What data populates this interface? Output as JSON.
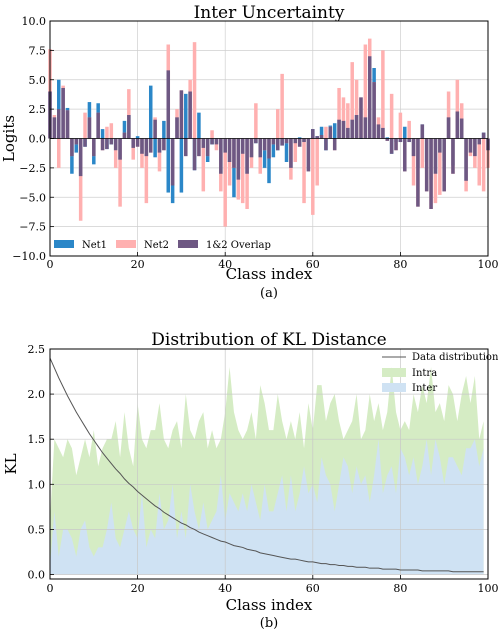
{
  "chart_data": [
    {
      "type": "bar",
      "title": "Inter Uncertainty",
      "xlabel": "Class index",
      "ylabel": "Logits",
      "caption": "(a)",
      "xlim": [
        0,
        100
      ],
      "ylim": [
        -10,
        10
      ],
      "xticks": [
        0,
        20,
        40,
        60,
        80,
        100
      ],
      "yticks": [
        -10.0,
        -7.5,
        -5.0,
        -2.5,
        0.0,
        2.5,
        5.0,
        7.5,
        10.0
      ],
      "ytick_labels": [
        "−10.0",
        "−7.5",
        "−5.0",
        "−2.5",
        "0.0",
        "2.5",
        "5.0",
        "7.5",
        "10.0"
      ],
      "grid": true,
      "legend": "bottom-left",
      "series": [
        {
          "name": "Net1",
          "color": "#2b87c8",
          "values": [
            4.0,
            1.8,
            5.0,
            4.3,
            2.6,
            -3.0,
            -1.2,
            -3.2,
            -0.7,
            3.1,
            -2.2,
            3.0,
            0.8,
            -0.9,
            -0.5,
            -1.0,
            -1.8,
            1.5,
            2.0,
            -0.8,
            0.2,
            -1.3,
            -1.5,
            4.5,
            -1.6,
            -1.2,
            1.5,
            -4.6,
            -5.5,
            1.8,
            -4.6,
            3.8,
            4.0,
            -2.7,
            2.2,
            -0.8,
            -2.0,
            -0.5,
            -0.5,
            -3.0,
            -1.2,
            -2.0,
            -5.0,
            -3.5,
            -1.3,
            -3.0,
            -1.6,
            -0.4,
            -1.6,
            -2.5,
            -3.8,
            -1.6,
            -1.0,
            -0.6,
            -2.0,
            -2.5,
            -0.4,
            0.1,
            -0.3,
            0.0,
            0.8,
            0.2,
            1.0,
            -1.0,
            1.1,
            1.3,
            1.6,
            1.5,
            0.9,
            1.6,
            2.0,
            0.0,
            1.8,
            2.0,
            6.0,
            1.2,
            0.9,
            0.1,
            -1.3,
            -0.3,
            -0.3,
            1.0,
            -0.3,
            -1.5,
            -2.5,
            1.2,
            -2.0,
            -3.5,
            -3.0,
            -1.2,
            -1.9,
            1.8,
            -2.3,
            2.3,
            1.7,
            -3.6,
            -1.2,
            -1.5,
            -0.5,
            0.5,
            -1.0
          ]
        },
        {
          "name": "Net2",
          "color": "#ffb0b0",
          "values": [
            7.6,
            2.0,
            -2.5,
            4.5,
            2.4,
            -1.5,
            -0.5,
            -7.0,
            2.2,
            1.8,
            -1.5,
            2.2,
            -1.0,
            1.0,
            1.3,
            -2.5,
            -5.8,
            0.5,
            4.2,
            -1.8,
            -0.7,
            -2.5,
            -5.5,
            -1.2,
            1.8,
            -2.8,
            -1.0,
            8.0,
            -4.0,
            2.5,
            4.1,
            -1.5,
            5.0,
            8.2,
            -1.5,
            -4.5,
            -1.5,
            0.7,
            -1.0,
            -4.5,
            -7.5,
            -4.0,
            -2.5,
            -5.2,
            -5.5,
            -6.0,
            -2.5,
            3.0,
            -3.0,
            -1.0,
            -1.7,
            -0.5,
            2.5,
            5.5,
            -0.4,
            -3.5,
            -2.0,
            -0.7,
            -5.5,
            -2.8,
            -6.5,
            -4.0,
            0.3,
            1.0,
            1.0,
            -1.0,
            4.3,
            3.5,
            3.0,
            6.5,
            5.0,
            3.5,
            8.0,
            8.5,
            4.8,
            1.8,
            7.5,
            -0.2,
            3.8,
            -1.0,
            2.2,
            -2.8,
            1.5,
            -4.0,
            -5.8,
            -2.5,
            -4.5,
            -6.0,
            -5.5,
            -4.8,
            -4.5,
            4.0,
            -3.0,
            5.0,
            3.0,
            -4.5,
            -1.5,
            -2.5,
            -4.0,
            -4.5,
            -2.5
          ]
        },
        {
          "name": "1&2 Overlap",
          "color": "#6e5883",
          "values": [
            4.0,
            1.8,
            2.5,
            4.3,
            2.4,
            -1.5,
            -0.5,
            -3.2,
            -0.7,
            1.8,
            -1.5,
            2.2,
            -1.0,
            -0.9,
            -0.5,
            -1.0,
            -1.8,
            0.5,
            2.0,
            -0.8,
            -0.7,
            -1.3,
            -1.5,
            -1.2,
            1.6,
            -1.2,
            -1.0,
            5.8,
            -4.0,
            1.8,
            4.1,
            -1.5,
            4.0,
            -2.7,
            -1.5,
            -0.8,
            -1.5,
            -0.5,
            -0.5,
            -3.0,
            -1.2,
            -2.0,
            -2.5,
            -3.5,
            -1.3,
            -3.0,
            -1.6,
            -0.4,
            -1.6,
            -1.0,
            -1.7,
            -0.5,
            -1.0,
            -0.6,
            -0.4,
            -2.5,
            -0.4,
            -0.7,
            -0.3,
            -2.8,
            0.8,
            0.2,
            0.3,
            -1.0,
            1.0,
            -1.0,
            1.6,
            1.5,
            0.9,
            1.6,
            2.0,
            3.5,
            1.8,
            7.0,
            4.8,
            1.2,
            0.9,
            -0.2,
            -1.3,
            -1.0,
            -0.3,
            -2.8,
            -0.3,
            -1.5,
            -5.8,
            1.2,
            -4.5,
            -6.0,
            -3.0,
            -1.2,
            -4.5,
            1.8,
            -3.0,
            2.3,
            1.7,
            -3.6,
            -1.2,
            -1.5,
            -0.5,
            0.5,
            -1.0
          ]
        }
      ]
    },
    {
      "type": "area",
      "title": "Distribution of KL Distance",
      "xlabel": "Class index",
      "ylabel": "KL",
      "caption": "(b)",
      "xlim": [
        0,
        100
      ],
      "ylim": [
        -0.05,
        2.5
      ],
      "xticks": [
        0,
        20,
        40,
        60,
        80,
        100
      ],
      "yticks": [
        0.0,
        0.5,
        1.0,
        1.5,
        2.0,
        2.5
      ],
      "ytick_labels": [
        "0.0",
        "0.5",
        "1.0",
        "1.5",
        "2.0",
        "2.5"
      ],
      "grid": true,
      "legend": "top-right",
      "series": [
        {
          "name": "Data distribution",
          "color": "#555555",
          "kind": "line",
          "values": [
            2.4,
            2.29,
            2.18,
            2.08,
            1.98,
            1.89,
            1.8,
            1.72,
            1.64,
            1.56,
            1.49,
            1.42,
            1.35,
            1.29,
            1.23,
            1.17,
            1.12,
            1.06,
            1.01,
            0.97,
            0.92,
            0.88,
            0.84,
            0.8,
            0.76,
            0.73,
            0.69,
            0.66,
            0.63,
            0.6,
            0.57,
            0.55,
            0.52,
            0.5,
            0.47,
            0.45,
            0.43,
            0.41,
            0.39,
            0.37,
            0.36,
            0.34,
            0.32,
            0.31,
            0.3,
            0.28,
            0.27,
            0.26,
            0.24,
            0.23,
            0.22,
            0.21,
            0.2,
            0.19,
            0.18,
            0.17,
            0.17,
            0.16,
            0.15,
            0.14,
            0.14,
            0.13,
            0.12,
            0.12,
            0.11,
            0.11,
            0.1,
            0.1,
            0.09,
            0.09,
            0.08,
            0.08,
            0.08,
            0.07,
            0.07,
            0.07,
            0.06,
            0.06,
            0.06,
            0.06,
            0.05,
            0.05,
            0.05,
            0.05,
            0.05,
            0.04,
            0.04,
            0.04,
            0.04,
            0.04,
            0.04,
            0.04,
            0.03,
            0.03,
            0.03,
            0.03,
            0.03,
            0.03,
            0.03,
            0.03
          ]
        },
        {
          "name": "Intra",
          "color": "#d5ecc4",
          "kind": "area",
          "values": [
            0.6,
            1.5,
            1.4,
            1.3,
            1.5,
            1.4,
            1.1,
            1.3,
            1.5,
            1.3,
            1.6,
            1.2,
            1.4,
            1.5,
            1.5,
            1.7,
            1.3,
            1.8,
            1.4,
            1.2,
            1.9,
            1.5,
            1.4,
            1.6,
            1.6,
            1.9,
            1.5,
            1.4,
            1.6,
            1.7,
            1.4,
            2.0,
            1.6,
            1.5,
            1.7,
            1.8,
            1.4,
            1.6,
            1.4,
            1.5,
            1.8,
            2.3,
            1.8,
            1.6,
            1.5,
            1.6,
            1.8,
            1.5,
            2.1,
            1.9,
            1.6,
            1.6,
            2.0,
            1.7,
            1.5,
            1.7,
            1.5,
            1.8,
            1.4,
            1.9,
            1.6,
            2.1,
            2.1,
            1.7,
            1.9,
            2.0,
            1.7,
            1.5,
            1.6,
            1.7,
            2.0,
            1.5,
            1.6,
            2.0,
            1.7,
            1.9,
            1.6,
            1.8,
            2.3,
            1.8,
            1.6,
            1.7,
            1.6,
            2.0,
            1.8,
            2.1,
            1.9,
            2.3,
            1.8,
            1.9,
            1.7,
            2.1,
            2.0,
            1.7,
            2.0,
            2.2,
            1.9,
            2.2,
            1.5,
            1.7
          ]
        },
        {
          "name": "Inter",
          "color": "#cfe2f3",
          "kind": "area",
          "values": [
            0.1,
            0.7,
            0.2,
            0.5,
            0.5,
            0.4,
            0.2,
            0.5,
            0.6,
            0.3,
            0.2,
            0.3,
            0.3,
            0.5,
            0.8,
            0.4,
            0.3,
            0.5,
            0.7,
            0.5,
            0.4,
            0.9,
            0.3,
            0.5,
            0.4,
            0.9,
            0.5,
            0.6,
            1.0,
            0.4,
            0.7,
            0.4,
            1.0,
            0.7,
            0.5,
            0.8,
            0.5,
            0.6,
            0.7,
            1.1,
            0.6,
            0.9,
            0.8,
            0.7,
            0.9,
            0.7,
            1.0,
            0.8,
            0.6,
            1.0,
            0.7,
            0.7,
            0.9,
            1.1,
            0.7,
            1.1,
            0.7,
            0.9,
            1.2,
            0.9,
            1.0,
            0.8,
            1.3,
            1.1,
            1.0,
            0.7,
            1.0,
            1.3,
            1.2,
            0.9,
            1.2,
            1.0,
            1.1,
            0.8,
            1.1,
            1.5,
            0.9,
            1.1,
            1.2,
            0.9,
            1.4,
            1.3,
            1.1,
            1.3,
            1.0,
            1.2,
            1.5,
            1.1,
            1.5,
            1.3,
            1.0,
            1.3,
            1.3,
            1.2,
            1.1,
            1.4,
            1.4,
            1.5,
            1.2,
            1.4
          ]
        }
      ]
    }
  ]
}
